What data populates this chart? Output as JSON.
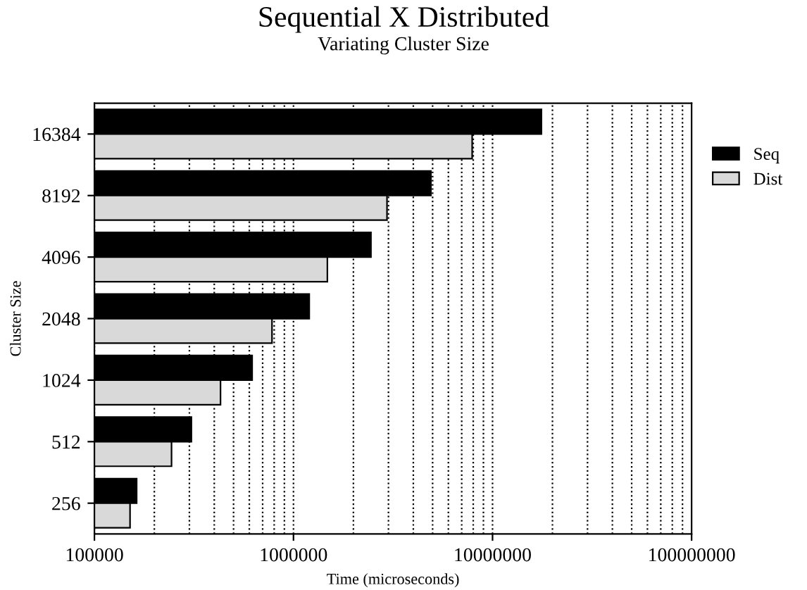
{
  "chart_data": {
    "type": "bar",
    "orientation": "horizontal",
    "title": "Sequential X Distributed",
    "subtitle": "Variating Cluster Size",
    "xlabel": "Time (microseconds)",
    "ylabel": "Cluster Size",
    "log": "x",
    "categories": [
      "16384",
      "8192",
      "4096",
      "2048",
      "1024",
      "512",
      "256"
    ],
    "series": [
      {
        "name": "Seq",
        "color": "#000000",
        "values": [
          17600000,
          4900000,
          2450000,
          1200000,
          620000,
          307000,
          163000
        ]
      },
      {
        "name": "Dist",
        "color": "#d9d9d9",
        "values": [
          7900000,
          2950000,
          1480000,
          780000,
          430000,
          244000,
          151000
        ]
      }
    ],
    "xlim": [
      100000,
      100000000
    ],
    "xticks": [
      100000,
      1000000,
      10000000,
      100000000
    ],
    "grid": "x",
    "legend": "right"
  }
}
